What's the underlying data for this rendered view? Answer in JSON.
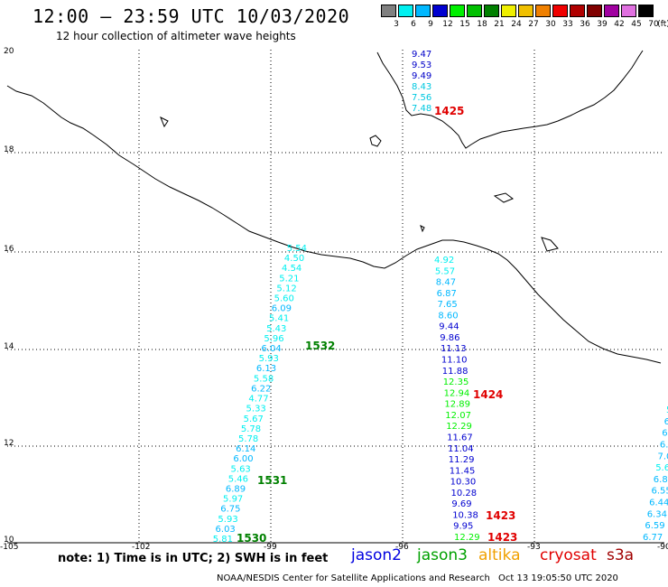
{
  "header": {
    "title": "12:00 – 23:59 UTC 10/03/2020",
    "subtitle": "12 hour collection of altimeter wave heights"
  },
  "scale": {
    "unit": "(ft)",
    "bins": [
      {
        "label": "3",
        "color": "#808080"
      },
      {
        "label": "6",
        "color": "#00f0f0"
      },
      {
        "label": "9",
        "color": "#00b8ff"
      },
      {
        "label": "12",
        "color": "#0000d0"
      },
      {
        "label": "15",
        "color": "#00f000"
      },
      {
        "label": "18",
        "color": "#00c000"
      },
      {
        "label": "21",
        "color": "#008000"
      },
      {
        "label": "24",
        "color": "#f0f000"
      },
      {
        "label": "27",
        "color": "#f0c000"
      },
      {
        "label": "30",
        "color": "#f08000"
      },
      {
        "label": "33",
        "color": "#f00000"
      },
      {
        "label": "36",
        "color": "#b00000"
      },
      {
        "label": "39",
        "color": "#800000"
      },
      {
        "label": "42",
        "color": "#a000a0"
      },
      {
        "label": "45",
        "color": "#e070e0"
      },
      {
        "label": "70",
        "color": "#000000"
      }
    ]
  },
  "axes": {
    "lon_labels": [
      "-105",
      "-102",
      "-99",
      "-96",
      "-93",
      "-90"
    ],
    "lat_labels": [
      "20",
      "18",
      "16",
      "14",
      "12",
      "10"
    ]
  },
  "tracks": {
    "track_north": {
      "color": "#0000c8",
      "values": [
        "9.47",
        "9.53",
        "9.49"
      ]
    },
    "track_north_cyan": {
      "color": "#00c8e0",
      "values": [
        "8.43",
        "7.56",
        "7.48"
      ]
    },
    "track_west": {
      "values": [
        "5.54",
        "4.50",
        "4.54",
        "5.21",
        "5.12",
        "5.60",
        "6.09",
        "5.41",
        "5.43",
        "5.96",
        "6.04",
        "5.93",
        "6.13",
        "5.58",
        "6.22",
        "4.77",
        "5.33",
        "5.67",
        "5.78",
        "5.78",
        "6.14",
        "6.00",
        "5.63",
        "5.46",
        "6.89",
        "5.97",
        "6.75",
        "5.93",
        "6.03",
        "5.81"
      ]
    },
    "track_middle": {
      "values": [
        "4.92",
        "5.57",
        "8.47",
        "6.87",
        "7.65",
        "8.60",
        "9.44",
        "9.86",
        "11.13",
        "11.10",
        "11.88",
        "12.35",
        "12.94",
        "12.89",
        "12.07",
        "12.29",
        "11.67",
        "11.04",
        "11.29",
        "11.45",
        "10.30",
        "10.28",
        "9.69",
        "10.38",
        "9.95",
        "12.29"
      ]
    },
    "track_east": {
      "values": [
        "5.",
        "6.",
        "6.",
        "6.7",
        "7.0",
        "5.6",
        "6.83",
        "6.55",
        "6.44",
        "6.34",
        "6.59",
        "6.77"
      ]
    }
  },
  "time_labels": [
    {
      "text": "1425",
      "color": "#e00000"
    },
    {
      "text": "1532",
      "color": "#008000"
    },
    {
      "text": "1424",
      "color": "#e00000"
    },
    {
      "text": "1531",
      "color": "#008000"
    },
    {
      "text": "1423",
      "color": "#e00000"
    },
    {
      "text": "1530",
      "color": "#008000"
    },
    {
      "text": "1423",
      "color": "#e00000"
    }
  ],
  "footer": {
    "note": "note:  1) Time is in UTC;  2) SWH is in feet",
    "legend": [
      {
        "text": "jason2",
        "color": "#0000e0"
      },
      {
        "text": "jason3",
        "color": "#00a000"
      },
      {
        "text": "altika",
        "color": "#f0a000"
      },
      {
        "text": "cryosat",
        "color": "#e00000"
      },
      {
        "text": "s3a",
        "color": "#a00000"
      }
    ],
    "credit": "NOAA/NESDIS Center for Satellite Applications and Research",
    "timestamp": "Oct 13 19:05:50 UTC 2020"
  }
}
